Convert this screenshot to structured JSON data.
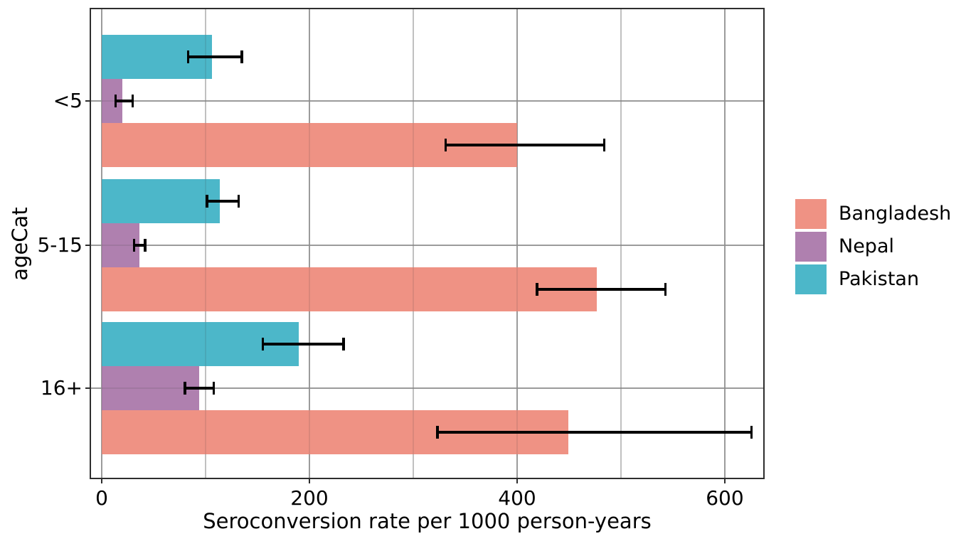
{
  "chart_data": {
    "type": "bar",
    "orientation": "horizontal",
    "title": "",
    "xlabel": "Seroconversion rate per 1000 person-years",
    "ylabel": "ageCat",
    "categories": [
      "<5",
      "5-15",
      "16+"
    ],
    "x_ticks": [
      0,
      200,
      400,
      600
    ],
    "x_tick_labels": [
      "0",
      "200",
      "400",
      "600"
    ],
    "x_minor_gridlines": [
      100,
      300,
      500
    ],
    "xlim": [
      -10.3,
      637
    ],
    "grid": {
      "vertical_major": true,
      "vertical_minor": true,
      "horizontal_major": true
    },
    "bar_order_top_to_bottom": [
      "Pakistan",
      "Nepal",
      "Bangladesh"
    ],
    "series": [
      {
        "name": "Bangladesh",
        "color": "#EF9284",
        "values": [
          400,
          477,
          449
        ],
        "ci_low": [
          330,
          418,
          322
        ],
        "ci_high": [
          485,
          544,
          627
        ]
      },
      {
        "name": "Nepal",
        "color": "#AF80AF",
        "values": [
          20,
          36,
          94
        ],
        "ci_low": [
          12,
          30,
          79
        ],
        "ci_high": [
          31,
          43,
          109
        ]
      },
      {
        "name": "Pakistan",
        "color": "#4CB7C9",
        "values": [
          106,
          114,
          190
        ],
        "ci_low": [
          82,
          100,
          154
        ],
        "ci_high": [
          136,
          133,
          234
        ]
      }
    ],
    "error_bar_color": "#000000",
    "legend": {
      "position": "right",
      "title": "",
      "entries": [
        "Bangladesh",
        "Nepal",
        "Pakistan"
      ]
    }
  }
}
